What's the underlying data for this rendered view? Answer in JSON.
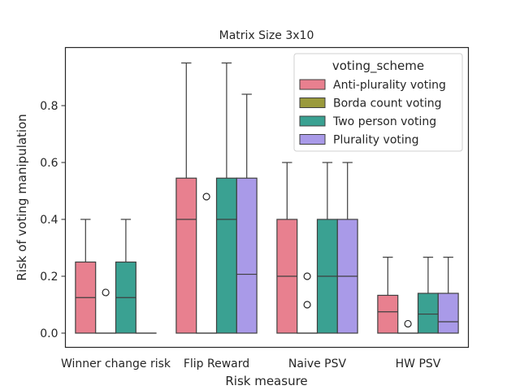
{
  "chart_data": {
    "type": "box",
    "title": "Matrix Size 3x10",
    "xlabel": "Risk measure",
    "ylabel": "Risk of voting manipulation",
    "ylim": [
      -0.05,
      1.0
    ],
    "yticks": [
      0.0,
      0.2,
      0.4,
      0.6,
      0.8
    ],
    "ytick_labels": [
      "0.0",
      "0.2",
      "0.4",
      "0.6",
      "0.8"
    ],
    "grid": false,
    "legend": {
      "title": "voting_scheme",
      "placement": "top-right"
    },
    "categories": [
      "Winner change risk",
      "Flip Reward",
      "Naive PSV",
      "HW PSV"
    ],
    "series": [
      {
        "name": "Anti-plurality voting",
        "color": "#e8808f",
        "boxes": [
          {
            "whislo": 0.0,
            "q1": 0.0,
            "med": 0.125,
            "q3": 0.25,
            "whishi": 0.4,
            "fliers": []
          },
          {
            "whislo": 0.0,
            "q1": 0.0,
            "med": 0.4,
            "q3": 0.545,
            "whishi": 0.95,
            "fliers": []
          },
          {
            "whislo": 0.0,
            "q1": 0.0,
            "med": 0.2,
            "q3": 0.4,
            "whishi": 0.6,
            "fliers": []
          },
          {
            "whislo": 0.0,
            "q1": 0.0,
            "med": 0.075,
            "q3": 0.133,
            "whishi": 0.267,
            "fliers": []
          }
        ]
      },
      {
        "name": "Borda count voting",
        "color": "#9a9a3c",
        "boxes": [
          {
            "whislo": 0.0,
            "q1": 0.0,
            "med": 0.0,
            "q3": 0.0,
            "whishi": 0.0,
            "fliers": [
              0.143
            ]
          },
          {
            "whislo": 0.0,
            "q1": 0.0,
            "med": 0.0,
            "q3": 0.0,
            "whishi": 0.0,
            "fliers": [
              0.48
            ]
          },
          {
            "whislo": 0.0,
            "q1": 0.0,
            "med": 0.0,
            "q3": 0.0,
            "whishi": 0.0,
            "fliers": [
              0.2,
              0.1
            ]
          },
          {
            "whislo": 0.0,
            "q1": 0.0,
            "med": 0.0,
            "q3": 0.0,
            "whishi": 0.0,
            "fliers": [
              0.033
            ]
          }
        ]
      },
      {
        "name": "Two person voting",
        "color": "#3aa192",
        "boxes": [
          {
            "whislo": 0.0,
            "q1": 0.0,
            "med": 0.125,
            "q3": 0.25,
            "whishi": 0.4,
            "fliers": []
          },
          {
            "whislo": 0.0,
            "q1": 0.0,
            "med": 0.4,
            "q3": 0.545,
            "whishi": 0.95,
            "fliers": []
          },
          {
            "whislo": 0.0,
            "q1": 0.0,
            "med": 0.2,
            "q3": 0.4,
            "whishi": 0.6,
            "fliers": []
          },
          {
            "whislo": 0.0,
            "q1": 0.0,
            "med": 0.067,
            "q3": 0.14,
            "whishi": 0.267,
            "fliers": []
          }
        ]
      },
      {
        "name": "Plurality voting",
        "color": "#a99ae8",
        "boxes": [
          {
            "whislo": 0.0,
            "q1": 0.0,
            "med": 0.0,
            "q3": 0.0,
            "whishi": 0.0,
            "fliers": []
          },
          {
            "whislo": 0.0,
            "q1": 0.0,
            "med": 0.207,
            "q3": 0.545,
            "whishi": 0.84,
            "fliers": []
          },
          {
            "whislo": 0.0,
            "q1": 0.0,
            "med": 0.2,
            "q3": 0.4,
            "whishi": 0.6,
            "fliers": []
          },
          {
            "whislo": 0.0,
            "q1": 0.0,
            "med": 0.04,
            "q3": 0.14,
            "whishi": 0.267,
            "fliers": []
          }
        ]
      }
    ]
  }
}
